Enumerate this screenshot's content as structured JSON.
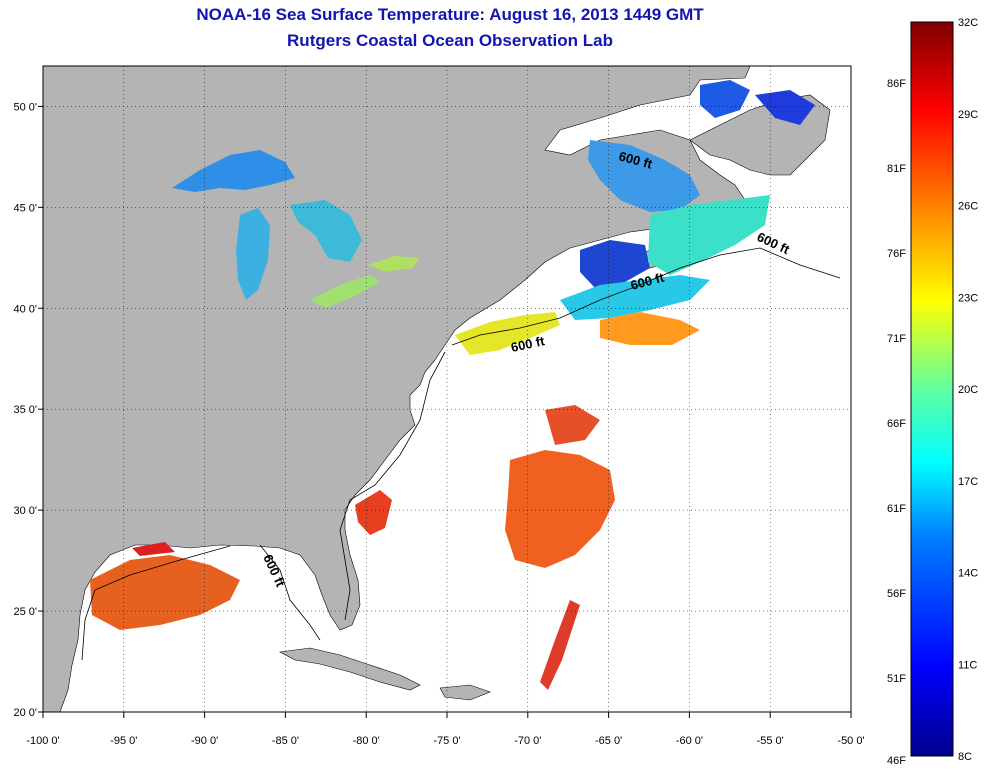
{
  "title": {
    "line1": "NOAA-16 Sea Surface Temperature:  August 16, 2013 1449 GMT",
    "line2": "Rutgers Coastal Ocean Observation Lab"
  },
  "map": {
    "lon_range": [
      -100,
      -50
    ],
    "lat_range": [
      20,
      52
    ],
    "lon_ticks": [
      "-100 0'",
      "-95 0'",
      "-90 0'",
      "-85 0'",
      "-80 0'",
      "-75 0'",
      "-70 0'",
      "-65 0'",
      "-60 0'",
      "-55 0'",
      "-50 0'"
    ],
    "lat_ticks": [
      "50 0'",
      "45 0'",
      "40 0'",
      "35 0'",
      "30 0'",
      "25 0'",
      "20 0'"
    ],
    "land_color": "#b4b4b4",
    "ocean_color": "#ffffff",
    "grid": "dotted"
  },
  "isobath_labels": [
    "600 ft",
    "600 ft",
    "600 ft",
    "600 ft",
    "600 ft"
  ],
  "colorbar": {
    "celsius": [
      "32C",
      "29C",
      "26C",
      "23C",
      "20C",
      "17C",
      "14C",
      "11C",
      "8C"
    ],
    "fahrenheit": [
      "86F",
      "81F",
      "76F",
      "71F",
      "66F",
      "61F",
      "56F",
      "51F",
      "46F"
    ],
    "min_c": 8,
    "max_c": 32
  }
}
